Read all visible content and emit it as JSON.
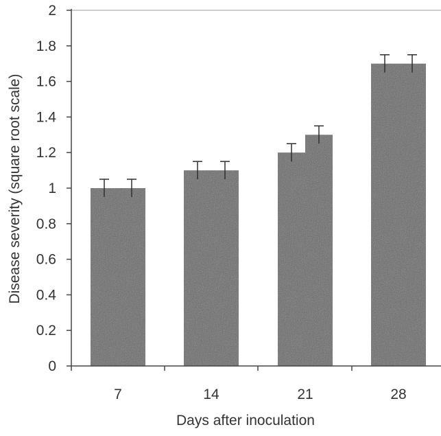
{
  "chart_data": {
    "type": "bar",
    "title": "",
    "xlabel": "Days after inoculation",
    "ylabel": "Disease severity (square root scale)",
    "categories": [
      "7",
      "14",
      "21",
      "28"
    ],
    "series": [
      {
        "values": [
          1.0,
          1.1,
          1.2,
          1.7
        ],
        "errors": [
          0.05,
          0.05,
          0.05,
          0.05
        ]
      },
      {
        "values": [
          1.0,
          1.1,
          1.3,
          1.7
        ],
        "errors": [
          0.05,
          0.05,
          0.05,
          0.05
        ]
      }
    ],
    "ylim": [
      0,
      2
    ],
    "yticks": [
      0,
      0.2,
      0.4,
      0.6,
      0.8,
      1,
      1.2,
      1.4,
      1.6,
      1.8,
      2
    ],
    "ytick_labels": [
      "0",
      "0.2",
      "0.4",
      "0.6",
      "0.8",
      "1",
      "1.2",
      "1.4",
      "1.6",
      "1.8",
      "2"
    ],
    "grid": false,
    "legend": "none",
    "bar_color": "#6a6a6a",
    "axis_color": "#444444"
  }
}
